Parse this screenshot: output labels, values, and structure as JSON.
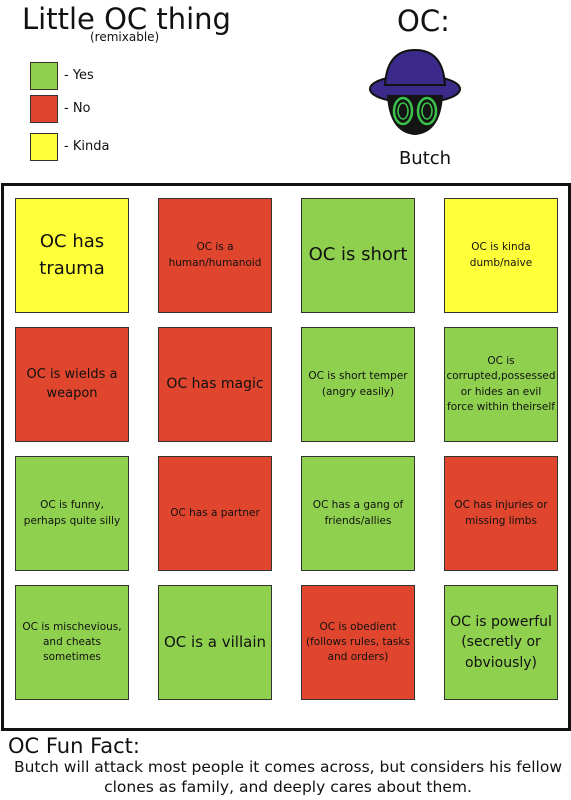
{
  "header": {
    "title": "Little OC thing",
    "subtitle": "(remixable)"
  },
  "legend": [
    {
      "label": "- Yes",
      "color": "#8fd14f"
    },
    {
      "label": "- No",
      "color": "#e0452e"
    },
    {
      "label": "- Kinda",
      "color": "#ffff3a"
    }
  ],
  "oc": {
    "label": "OC:",
    "name": "Butch"
  },
  "cells": [
    {
      "text": "OC has trauma",
      "color": "#ffff3a"
    },
    {
      "text": "OC is a human/humanoid",
      "color": "#e0452e"
    },
    {
      "text": "OC is short",
      "color": "#8fd14f"
    },
    {
      "text": "OC is kinda dumb/naive",
      "color": "#ffff3a"
    },
    {
      "text": "OC is wields a weapon",
      "color": "#e0452e"
    },
    {
      "text": "OC has magic",
      "color": "#e0452e"
    },
    {
      "text": "OC is short temper (angry easily)",
      "color": "#8fd14f"
    },
    {
      "text": "OC is corrupted,possessed or hides an evil force within theirself",
      "color": "#8fd14f"
    },
    {
      "text": "OC is funny, perhaps quite silly",
      "color": "#8fd14f"
    },
    {
      "text": "OC has a partner",
      "color": "#e0452e"
    },
    {
      "text": "OC has a gang of friends/allies",
      "color": "#8fd14f"
    },
    {
      "text": "OC has injuries or missing limbs",
      "color": "#e0452e"
    },
    {
      "text": "OC is mischevious, and cheats sometimes",
      "color": "#8fd14f"
    },
    {
      "text": "OC is a villain",
      "color": "#8fd14f"
    },
    {
      "text": "OC is obedient (follows rules, tasks and orders)",
      "color": "#e0452e"
    },
    {
      "text": "OC is powerful (secretly or obviously)",
      "color": "#8fd14f"
    }
  ],
  "fun_fact": {
    "title": "OC Fun Fact:",
    "text": "Butch will attack most people it comes across, but considers his fellow clones as family, and deeply cares about them."
  }
}
